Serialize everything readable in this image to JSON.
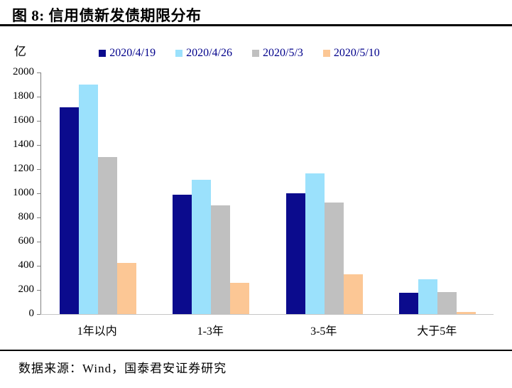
{
  "header": {
    "title": "图 8: 信用债新发债期限分布"
  },
  "footer": {
    "source": "数据来源：Wind，国泰君安证券研究"
  },
  "chart_data": {
    "type": "bar",
    "title": "信用债新发债期限分布",
    "unit_label": "亿",
    "categories": [
      "1年以内",
      "1-3年",
      "3-5年",
      "大于5年"
    ],
    "series": [
      {
        "name": "2020/4/19",
        "color": "#0B0B8D",
        "values": [
          1710,
          990,
          1000,
          175
        ]
      },
      {
        "name": "2020/4/26",
        "color": "#9BE1FC",
        "values": [
          1900,
          1110,
          1165,
          290
        ]
      },
      {
        "name": "2020/5/3",
        "color": "#C0C0C0",
        "values": [
          1300,
          900,
          925,
          185
        ]
      },
      {
        "name": "2020/5/10",
        "color": "#FCC795",
        "values": [
          425,
          260,
          330,
          20
        ]
      }
    ],
    "ylim": [
      0,
      2000
    ],
    "yticks": [
      0,
      200,
      400,
      600,
      800,
      1000,
      1200,
      1400,
      1600,
      1800,
      2000
    ],
    "legend_position": "top",
    "grid": false,
    "colors": {
      "legend_text": "#00008B",
      "axis_line": "#808080",
      "baseline": "#C6C6C6",
      "title_rule": "#000000"
    }
  }
}
